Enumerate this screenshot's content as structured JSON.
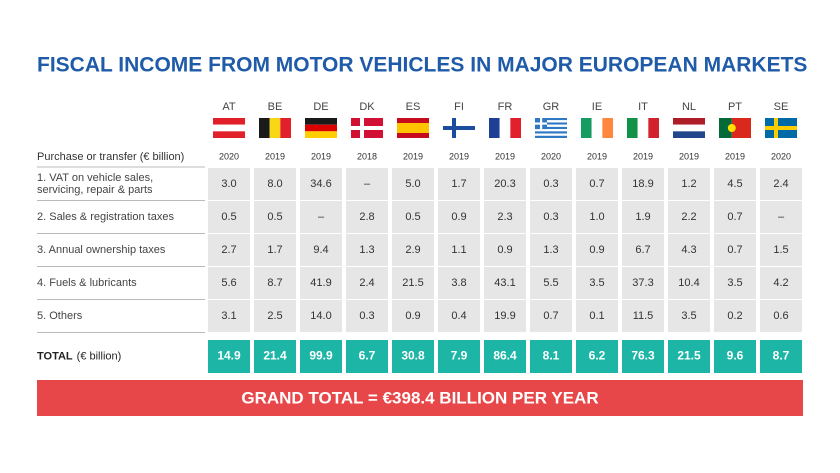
{
  "title": "FISCAL INCOME FROM MOTOR VEHICLES IN MAJOR EUROPEAN MARKETS",
  "header_label": "Purchase or transfer (€ billion)",
  "countries": [
    {
      "code": "AT",
      "year": "2020"
    },
    {
      "code": "BE",
      "year": "2019"
    },
    {
      "code": "DE",
      "year": "2019"
    },
    {
      "code": "DK",
      "year": "2018"
    },
    {
      "code": "ES",
      "year": "2019"
    },
    {
      "code": "FI",
      "year": "2019"
    },
    {
      "code": "FR",
      "year": "2019"
    },
    {
      "code": "GR",
      "year": "2020"
    },
    {
      "code": "IE",
      "year": "2019"
    },
    {
      "code": "IT",
      "year": "2019"
    },
    {
      "code": "NL",
      "year": "2019"
    },
    {
      "code": "PT",
      "year": "2019"
    },
    {
      "code": "SE",
      "year": "2020"
    }
  ],
  "rows": [
    {
      "label_lines": [
        "1. VAT on vehicle sales,",
        "servicing, repair & parts"
      ],
      "values": [
        "3.0",
        "8.0",
        "34.6",
        "–",
        "5.0",
        "1.7",
        "20.3",
        "0.3",
        "0.7",
        "18.9",
        "1.2",
        "4.5",
        "2.4"
      ]
    },
    {
      "label_lines": [
        "2. Sales & registration taxes"
      ],
      "values": [
        "0.5",
        "0.5",
        "–",
        "2.8",
        "0.5",
        "0.9",
        "2.3",
        "0.3",
        "1.0",
        "1.9",
        "2.2",
        "0.7",
        "–"
      ]
    },
    {
      "label_lines": [
        "3. Annual ownership taxes"
      ],
      "values": [
        "2.7",
        "1.7",
        "9.4",
        "1.3",
        "2.9",
        "1.1",
        "0.9",
        "1.3",
        "0.9",
        "6.7",
        "4.3",
        "0.7",
        "1.5"
      ]
    },
    {
      "label_lines": [
        "4. Fuels & lubricants"
      ],
      "values": [
        "5.6",
        "8.7",
        "41.9",
        "2.4",
        "21.5",
        "3.8",
        "43.1",
        "5.5",
        "3.5",
        "37.3",
        "10.4",
        "3.5",
        "4.2"
      ]
    },
    {
      "label_lines": [
        "5. Others"
      ],
      "values": [
        "3.1",
        "2.5",
        "14.0",
        "0.3",
        "0.9",
        "0.4",
        "19.9",
        "0.7",
        "0.1",
        "11.5",
        "3.5",
        "0.2",
        "0.6"
      ]
    }
  ],
  "total": {
    "label_bold": "TOTAL",
    "label_unit": "(€ billion)",
    "values": [
      "14.9",
      "21.4",
      "99.9",
      "6.7",
      "30.8",
      "7.9",
      "86.4",
      "8.1",
      "6.2",
      "76.3",
      "21.5",
      "9.6",
      "8.7"
    ]
  },
  "grand_total": "GRAND TOTAL = €398.4 BILLION PER YEAR"
}
